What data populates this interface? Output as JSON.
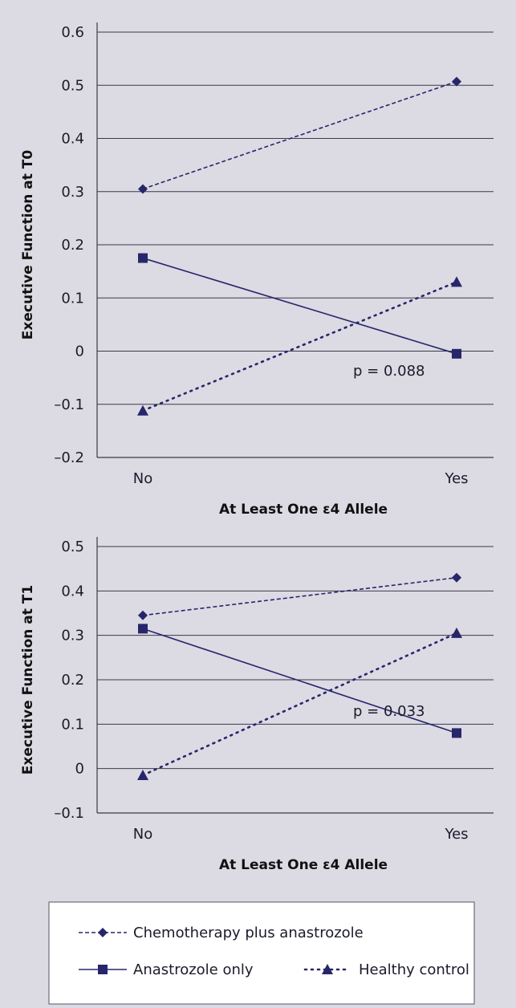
{
  "colors": {
    "background": "#dcdae3",
    "series": "#27266b",
    "grid": "#3a3a4a",
    "legend_bg": "#ffffff"
  },
  "chart_data": [
    {
      "type": "line",
      "id": "t0",
      "categories": [
        "No",
        "Yes"
      ],
      "series": [
        {
          "name": "Chemotherapy plus anastrozole",
          "values": [
            0.305,
            0.507
          ],
          "style": "dashed",
          "marker": "diamond"
        },
        {
          "name": "Anastrozole only",
          "values": [
            0.175,
            -0.005
          ],
          "style": "solid",
          "marker": "square"
        },
        {
          "name": "Healthy control",
          "values": [
            -0.112,
            0.13
          ],
          "style": "dotted",
          "marker": "triangle"
        }
      ],
      "xlabel": "At Least One ε4 Allele",
      "ylabel": "Executive Function at T0",
      "ylim": [
        -0.2,
        0.6
      ],
      "yticks": [
        0.6,
        0.5,
        0.4,
        0.3,
        0.2,
        0.1,
        0,
        -0.1,
        -0.2
      ],
      "ytick_labels": [
        "0.6",
        "0.5",
        "0.4",
        "0.3",
        "0.2",
        "0.1",
        "0",
        "–0.1",
        "–0.2"
      ],
      "annotation": "p = 0.088",
      "grid": "horizontal"
    },
    {
      "type": "line",
      "id": "t1",
      "categories": [
        "No",
        "Yes"
      ],
      "series": [
        {
          "name": "Chemotherapy plus anastrozole",
          "values": [
            0.345,
            0.43
          ],
          "style": "dashed",
          "marker": "diamond"
        },
        {
          "name": "Anastrozole only",
          "values": [
            0.315,
            0.08
          ],
          "style": "solid",
          "marker": "square"
        },
        {
          "name": "Healthy control",
          "values": [
            -0.015,
            0.305
          ],
          "style": "dotted",
          "marker": "triangle"
        }
      ],
      "xlabel": "At Least One ε4 Allele",
      "ylabel": "Executive Function at T1",
      "ylim": [
        -0.1,
        0.5
      ],
      "yticks": [
        0.5,
        0.4,
        0.3,
        0.2,
        0.1,
        0,
        -0.1
      ],
      "ytick_labels": [
        "0.5",
        "0.4",
        "0.3",
        "0.2",
        "0.1",
        "0",
        "–0.1"
      ],
      "annotation": "p = 0.033",
      "grid": "horizontal"
    }
  ],
  "legend": {
    "items": [
      {
        "label": "Chemotherapy plus anastrozole",
        "style": "dashed",
        "marker": "diamond"
      },
      {
        "label": "Anastrozole only",
        "style": "solid",
        "marker": "square"
      },
      {
        "label": "Healthy control",
        "style": "dotted",
        "marker": "triangle"
      }
    ]
  }
}
